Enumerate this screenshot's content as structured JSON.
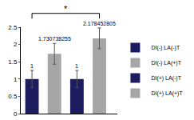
{
  "chart_data": {
    "type": "bar",
    "categories": [
      "DI(-) LA(-)T",
      "DI(-) LA(+)T",
      "DI(+) LA(-)T",
      "DI(+) LA(+)T"
    ],
    "values": [
      1,
      1.730738255,
      1,
      2.178452805
    ],
    "errors": [
      0.25,
      0.3,
      0.25,
      0.3
    ],
    "colors": [
      "#1c1c5e",
      "#a6a6a6",
      "#1c1c5e",
      "#a6a6a6"
    ],
    "ylim": [
      0,
      2.5
    ],
    "yticks": [
      0,
      0.5,
      1,
      1.5,
      2,
      2.5
    ],
    "grid": false,
    "data_labels": true,
    "tick_labels": "y",
    "legend": "right",
    "annotations": [
      "*"
    ]
  }
}
